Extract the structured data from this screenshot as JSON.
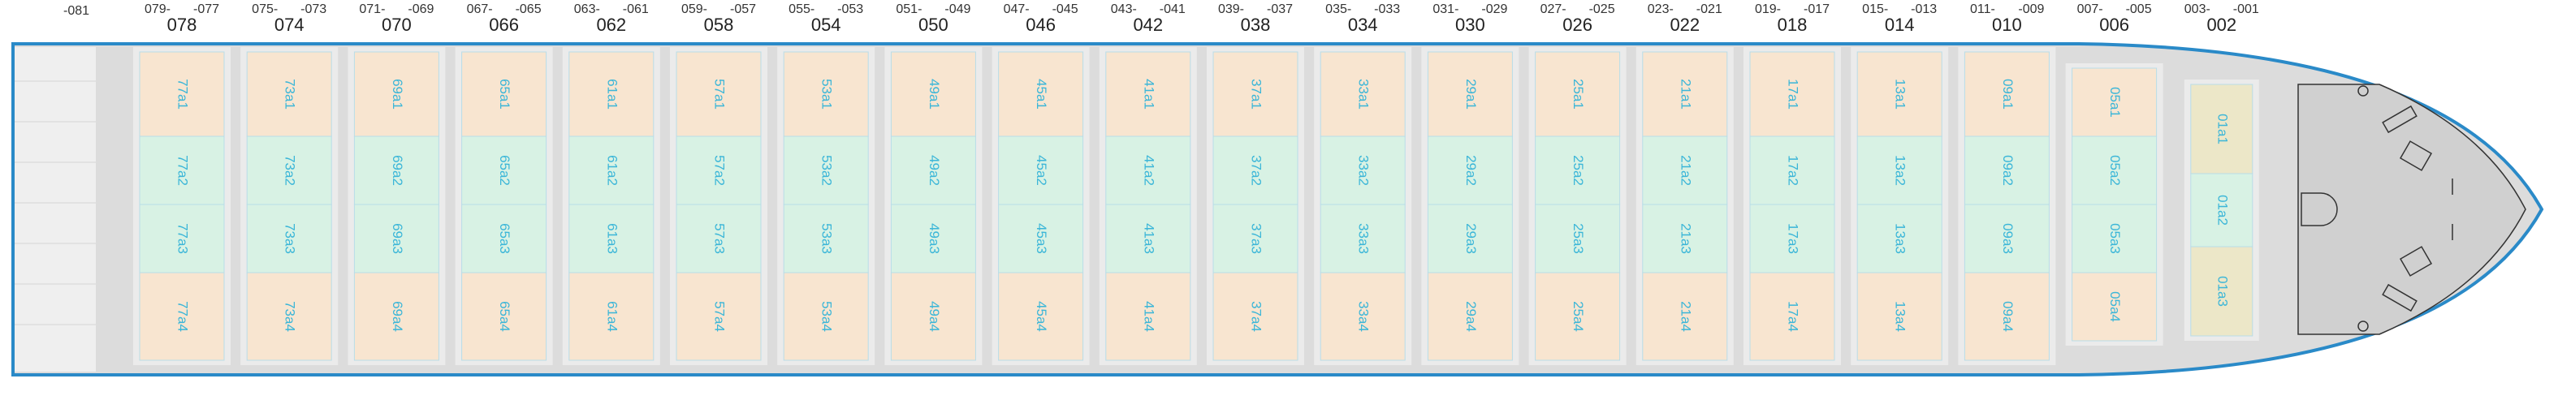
{
  "aft_label": "-081",
  "bays": [
    {
      "from": "079-",
      "to": "-077",
      "label": "078",
      "cells": [
        "77a1",
        "77a2",
        "77a3",
        "77a4"
      ]
    },
    {
      "from": "075-",
      "to": "-073",
      "label": "074",
      "cells": [
        "73a1",
        "73a2",
        "73a3",
        "73a4"
      ]
    },
    {
      "from": "071-",
      "to": "-069",
      "label": "070",
      "cells": [
        "69a1",
        "69a2",
        "69a3",
        "69a4"
      ]
    },
    {
      "from": "067-",
      "to": "-065",
      "label": "066",
      "cells": [
        "65a1",
        "65a2",
        "65a3",
        "65a4"
      ]
    },
    {
      "from": "063-",
      "to": "-061",
      "label": "062",
      "cells": [
        "61a1",
        "61a2",
        "61a3",
        "61a4"
      ]
    },
    {
      "from": "059-",
      "to": "-057",
      "label": "058",
      "cells": [
        "57a1",
        "57a2",
        "57a3",
        "57a4"
      ]
    },
    {
      "from": "055-",
      "to": "-053",
      "label": "054",
      "cells": [
        "53a1",
        "53a2",
        "53a3",
        "53a4"
      ]
    },
    {
      "from": "051-",
      "to": "-049",
      "label": "050",
      "cells": [
        "49a1",
        "49a2",
        "49a3",
        "49a4"
      ]
    },
    {
      "from": "047-",
      "to": "-045",
      "label": "046",
      "cells": [
        "45a1",
        "45a2",
        "45a3",
        "45a4"
      ]
    },
    {
      "from": "043-",
      "to": "-041",
      "label": "042",
      "cells": [
        "41a1",
        "41a2",
        "41a3",
        "41a4"
      ]
    },
    {
      "from": "039-",
      "to": "-037",
      "label": "038",
      "cells": [
        "37a1",
        "37a2",
        "37a3",
        "37a4"
      ]
    },
    {
      "from": "035-",
      "to": "-033",
      "label": "034",
      "cells": [
        "33a1",
        "33a2",
        "33a3",
        "33a4"
      ]
    },
    {
      "from": "031-",
      "to": "-029",
      "label": "030",
      "cells": [
        "29a1",
        "29a2",
        "29a3",
        "29a4"
      ]
    },
    {
      "from": "027-",
      "to": "-025",
      "label": "026",
      "cells": [
        "25a1",
        "25a2",
        "25a3",
        "25a4"
      ]
    },
    {
      "from": "023-",
      "to": "-021",
      "label": "022",
      "cells": [
        "21a1",
        "21a2",
        "21a3",
        "21a4"
      ]
    },
    {
      "from": "019-",
      "to": "-017",
      "label": "018",
      "cells": [
        "17a1",
        "17a2",
        "17a3",
        "17a4"
      ]
    },
    {
      "from": "015-",
      "to": "-013",
      "label": "014",
      "cells": [
        "13a1",
        "13a2",
        "13a3",
        "13a4"
      ]
    },
    {
      "from": "011-",
      "to": "-009",
      "label": "010",
      "cells": [
        "09a1",
        "09a2",
        "09a3",
        "09a4"
      ]
    },
    {
      "from": "007-",
      "to": "-005",
      "label": "006",
      "cells": [
        "05a1",
        "05a2",
        "05a3",
        "05a4"
      ]
    },
    {
      "from": "003-",
      "to": "-001",
      "label": "002",
      "cells": [
        "01a1",
        "01a2",
        "01a3"
      ]
    }
  ]
}
